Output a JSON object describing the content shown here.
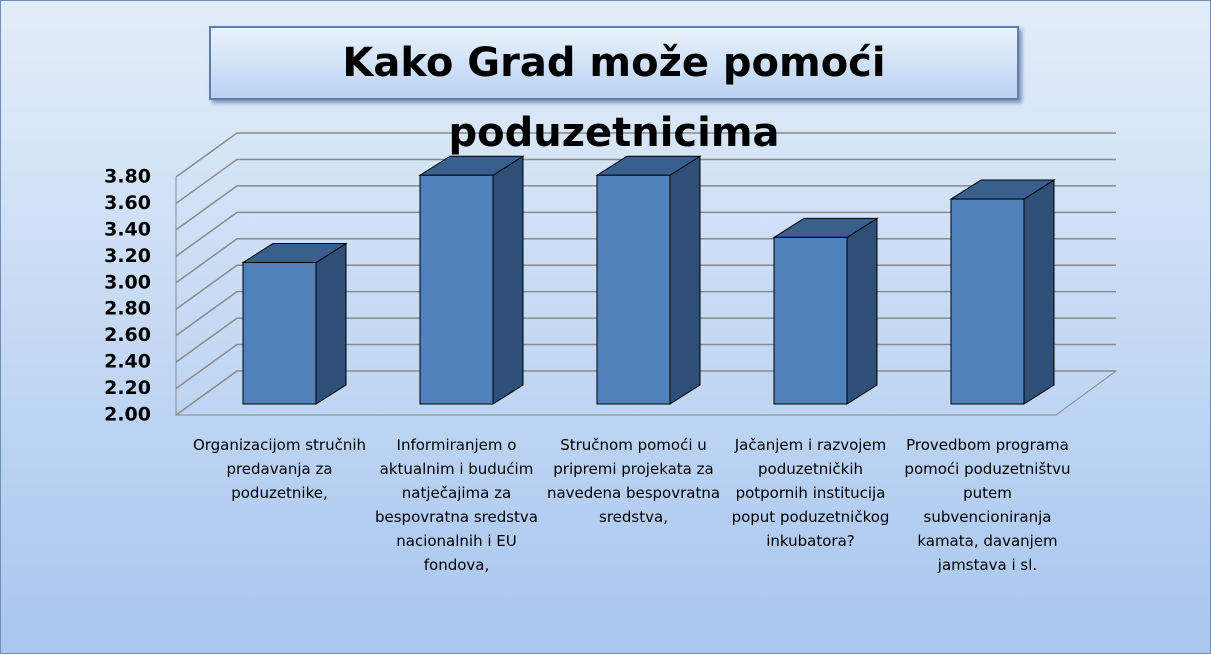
{
  "chart_data": {
    "type": "bar3d",
    "title": "Kako Grad može pomoći poduzetnicima",
    "categories": [
      "Organizacijom stručnih predavanja za poduzetnike,",
      "Informiranjem o aktualnim i budućim natječajima za bespovratna sredstva nacionalnih i EU fondova,",
      "Stručnom pomoći u pripremi projekata za navedena bespovratna sredstva,",
      "Jačanjem i razvojem poduzetničkih potpornih institucija poput poduzetničkog inkubatora?",
      "Provedbom programa pomoći poduzetništvu putem subvencioniranja kamata, davanjem jamstava i sl."
    ],
    "values": [
      3.07,
      3.73,
      3.73,
      3.26,
      3.55
    ],
    "color": "#4f81bd",
    "ylim": [
      2,
      3.8
    ],
    "yticks": [
      {
        "value": 2,
        "label": "2.00"
      },
      {
        "value": 2.2,
        "label": "2.20"
      },
      {
        "value": 2.4,
        "label": "2.40"
      },
      {
        "value": 2.6,
        "label": "2.60"
      },
      {
        "value": 2.8,
        "label": "2.80"
      },
      {
        "value": 3,
        "label": "3.00"
      },
      {
        "value": 3.2,
        "label": "3.20"
      },
      {
        "value": 3.4,
        "label": "3.40"
      },
      {
        "value": 3.6,
        "label": "3.60"
      },
      {
        "value": 3.8,
        "label": "3.80"
      }
    ],
    "grid": true
  }
}
